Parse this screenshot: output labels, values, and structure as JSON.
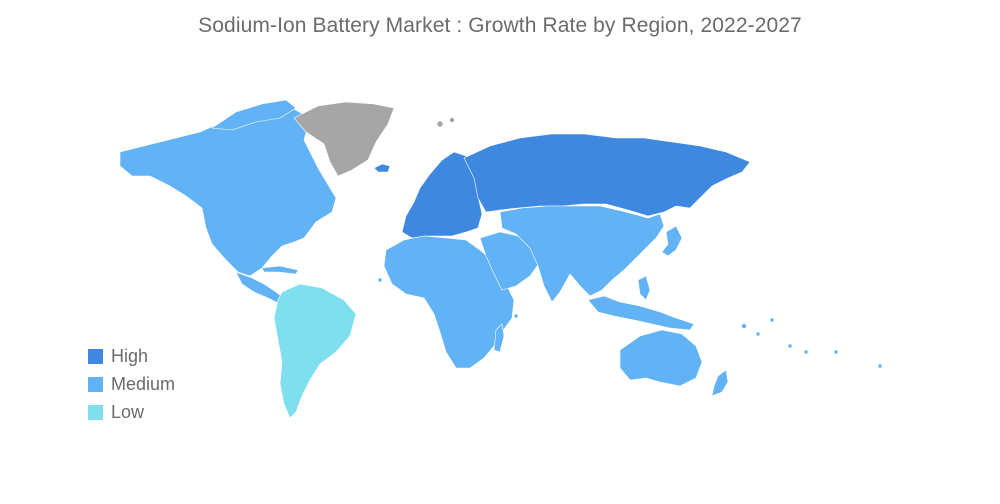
{
  "title": "Sodium-Ion Battery Market : Growth Rate by Region, 2022-2027",
  "colors": {
    "high": "#3f88e0",
    "medium": "#62b3f5",
    "low": "#7fdfee",
    "no_data": "#a6a6a6",
    "border": "#ffffff"
  },
  "legend": [
    {
      "label": "High",
      "color": "#3f88e0"
    },
    {
      "label": "Medium",
      "color": "#62b3f5"
    },
    {
      "label": "Low",
      "color": "#7fdfee"
    }
  ],
  "regions": [
    {
      "name": "north-america",
      "level": "medium"
    },
    {
      "name": "central-america",
      "level": "medium"
    },
    {
      "name": "south-america",
      "level": "low"
    },
    {
      "name": "greenland",
      "level": "no_data"
    },
    {
      "name": "europe",
      "level": "high"
    },
    {
      "name": "russia",
      "level": "high"
    },
    {
      "name": "africa",
      "level": "medium"
    },
    {
      "name": "middle-east",
      "level": "medium"
    },
    {
      "name": "central-asia",
      "level": "medium"
    },
    {
      "name": "south-asia",
      "level": "medium"
    },
    {
      "name": "east-asia",
      "level": "medium"
    },
    {
      "name": "southeast-asia",
      "level": "medium"
    },
    {
      "name": "australia",
      "level": "medium"
    },
    {
      "name": "new-zealand",
      "level": "medium"
    }
  ]
}
